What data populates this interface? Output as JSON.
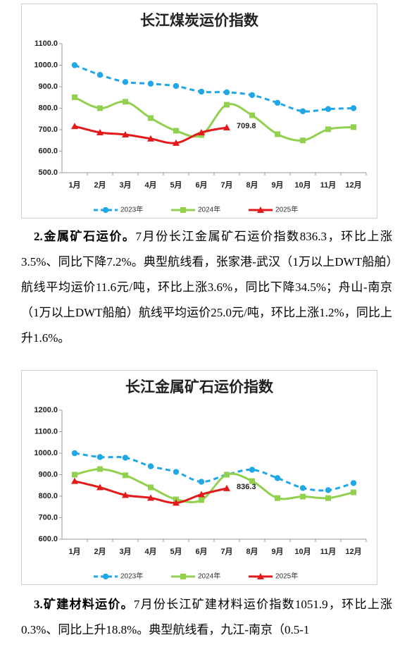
{
  "chart_data": [
    {
      "type": "line",
      "title": "长江煤炭运价指数",
      "categories": [
        "1月",
        "2月",
        "3月",
        "4月",
        "5月",
        "6月",
        "7月",
        "8月",
        "9月",
        "10月",
        "11月",
        "12月"
      ],
      "ylim": [
        500,
        1100
      ],
      "yticks": [
        {
          "value": 500,
          "label": "500.0"
        },
        {
          "value": 600,
          "label": "600.0"
        },
        {
          "value": 700,
          "label": "700.0"
        },
        {
          "value": 800,
          "label": "800.0"
        },
        {
          "value": 900,
          "label": "900.0"
        },
        {
          "value": 1000,
          "label": "1000.0"
        },
        {
          "value": 1100,
          "label": "1100.0"
        }
      ],
      "legend": "bottom",
      "series": [
        {
          "name": "2023年",
          "color": "#21a6e6",
          "line_style": "dashed",
          "marker": "circle",
          "values": [
            1000,
            955,
            922,
            914,
            903,
            877,
            874,
            861,
            825,
            786,
            796,
            800
          ]
        },
        {
          "name": "2024年",
          "color": "#92d050",
          "line_style": "solid",
          "marker": "square",
          "values": [
            851,
            800,
            830,
            754,
            695,
            675,
            816,
            767,
            679,
            650,
            702,
            712
          ]
        },
        {
          "name": "2025年",
          "color": "#e31a1c",
          "line_style": "solid",
          "marker": "triangle",
          "data_label": "last",
          "values": [
            716,
            687,
            677,
            658,
            638,
            687,
            709.8,
            null,
            null,
            null,
            null,
            null
          ]
        }
      ]
    },
    {
      "type": "line",
      "title": "长江金属矿石运价指数",
      "categories": [
        "1月",
        "2月",
        "3月",
        "4月",
        "5月",
        "6月",
        "7月",
        "8月",
        "9月",
        "10月",
        "11月",
        "12月"
      ],
      "ylim": [
        600,
        1200
      ],
      "yticks": [
        {
          "value": 600,
          "label": "600.0"
        },
        {
          "value": 700,
          "label": "700.0"
        },
        {
          "value": 800,
          "label": "800.0"
        },
        {
          "value": 900,
          "label": "900.0"
        },
        {
          "value": 1000,
          "label": "1000.0"
        },
        {
          "value": 1100,
          "label": "1100.0"
        },
        {
          "value": 1200,
          "label": "1200.0"
        }
      ],
      "legend": "bottom",
      "series": [
        {
          "name": "2023年",
          "color": "#21a6e6",
          "line_style": "dashed",
          "marker": "circle",
          "values": [
            1000,
            982,
            979,
            939,
            913,
            867,
            900,
            923,
            884,
            838,
            828,
            861
          ]
        },
        {
          "name": "2024年",
          "color": "#92d050",
          "line_style": "solid",
          "marker": "square",
          "values": [
            900,
            926,
            897,
            841,
            785,
            782,
            900,
            870,
            791,
            798,
            791,
            818
          ]
        },
        {
          "name": "2025年",
          "color": "#e31a1c",
          "line_style": "solid",
          "marker": "triangle",
          "data_label": "last",
          "values": [
            870,
            841,
            805,
            792,
            769,
            808,
            836.3,
            null,
            null,
            null,
            null,
            null
          ]
        }
      ]
    }
  ],
  "paragraphs": [
    {
      "lead": "2.金属矿石运价。",
      "text": "7月份长江金属矿石运价指数836.3，环比上涨3.5%、同比下降7.2%。典型航线看，张家港-武汉（1万以上DWT船舶）航线平均运价11.6元/吨，环比上涨3.6%，同比下降34.5%；舟山-南京（1万以上DWT船舶）航线平均运价25.0元/吨，环比上涨1.2%，同比上升1.6%。"
    },
    {
      "lead": "3.矿建材料运价。",
      "text": "7月份长江矿建材料运价指数1051.9，环比上涨0.3%、同比上升18.8%。典型航线看，九江-南京（0.5-1"
    }
  ]
}
